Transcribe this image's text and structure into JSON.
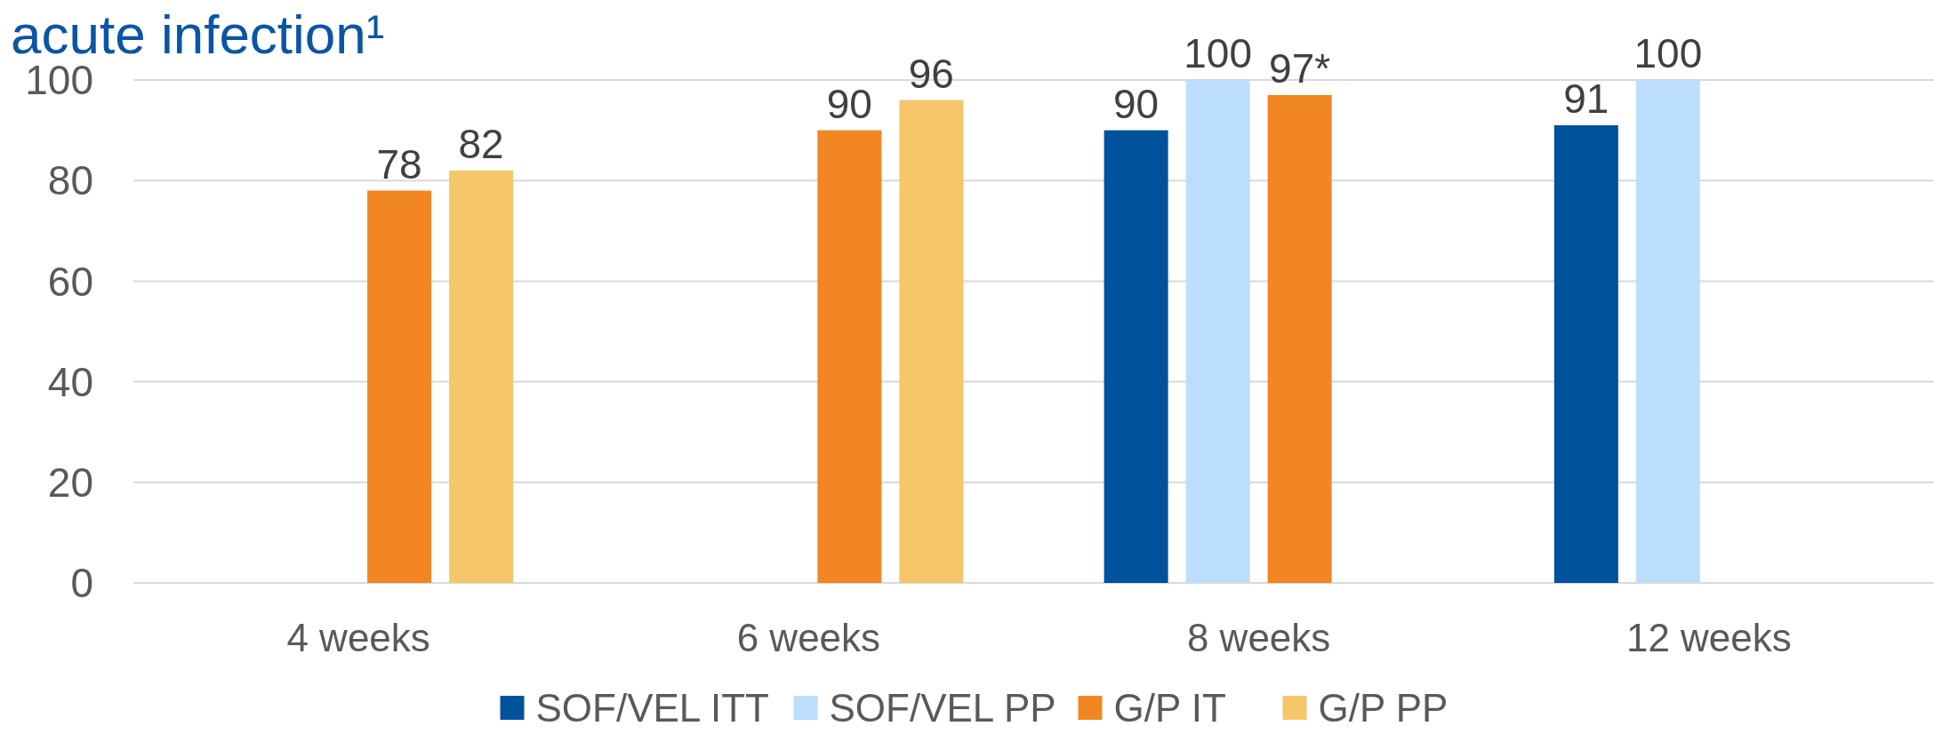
{
  "chart_data": {
    "type": "bar",
    "title": "acute infection¹",
    "categories": [
      "4 weeks",
      "6 weeks",
      "8 weeks",
      "12 weeks"
    ],
    "series": [
      {
        "name": "SOF/VEL ITT",
        "color": "#00529c",
        "values": [
          null,
          null,
          90,
          91
        ],
        "value_labels": [
          null,
          null,
          "90",
          "91"
        ]
      },
      {
        "name": "SOF/VEL PP",
        "color": "#bbdefc",
        "values": [
          null,
          null,
          100,
          100
        ],
        "value_labels": [
          null,
          null,
          "100",
          "100"
        ]
      },
      {
        "name": "G/P IT",
        "color": "#f18622",
        "values": [
          78,
          90,
          97,
          null
        ],
        "value_labels": [
          "78",
          "90",
          "97*",
          null
        ]
      },
      {
        "name": "G/P PP",
        "color": "#f5c66a",
        "values": [
          82,
          96,
          null,
          null
        ],
        "value_labels": [
          "82",
          "96",
          null,
          null
        ]
      }
    ],
    "ylim": [
      0,
      100
    ],
    "yticks": [
      0,
      20,
      40,
      60,
      80,
      100
    ],
    "grid": "y",
    "legend": "bottom"
  }
}
